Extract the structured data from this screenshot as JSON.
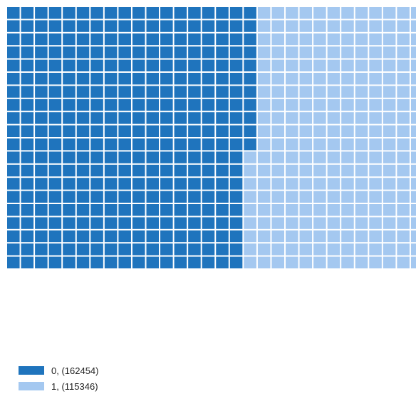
{
  "chart_data": {
    "type": "waffle",
    "series": [
      {
        "name": "0, (162454)",
        "category": "0",
        "count": 162454,
        "color": "#1f74bd"
      },
      {
        "name": "1, (115346)",
        "category": "1",
        "count": 115346,
        "color": "#a4c8f0"
      }
    ],
    "grid": {
      "rows": 20,
      "cols": 30,
      "fill_order": "column-major"
    }
  }
}
